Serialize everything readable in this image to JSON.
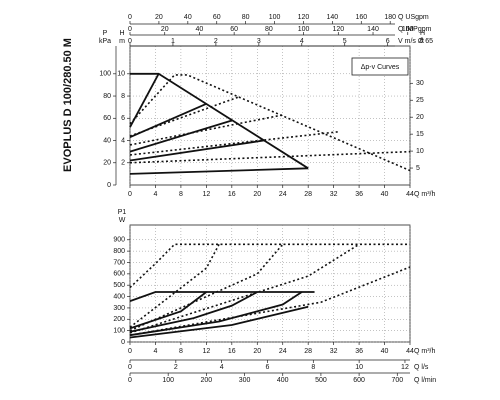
{
  "title": "EVOPLUS D 100/280.50 M",
  "chart_data": [
    {
      "type": "line",
      "legend": "Δp-v Curves",
      "grid": true,
      "xlabel": "Q m³/h",
      "xlim": [
        0,
        44
      ],
      "xticks": [
        0,
        4,
        8,
        12,
        16,
        20,
        24,
        28,
        32,
        36,
        40,
        44
      ],
      "ylabel": [
        "H",
        "m"
      ],
      "ylim": [
        0,
        12.5
      ],
      "yticks": [
        2,
        4,
        6,
        8,
        10
      ],
      "kpa": {
        "label": [
          "P",
          "kPa"
        ],
        "lim": [
          0,
          125
        ],
        "ticks": [
          0,
          20,
          40,
          60,
          80,
          100
        ]
      },
      "y2label": [
        "H",
        "ft"
      ],
      "y2lim": [
        0,
        41
      ],
      "y2ticks": [
        5,
        10,
        15,
        20,
        25,
        30
      ],
      "top_axes": [
        {
          "label": "Q USgpm",
          "lim": [
            0,
            193.7
          ],
          "ticks": [
            0,
            20,
            40,
            60,
            80,
            100,
            120,
            140,
            160,
            180
          ]
        },
        {
          "label": "Q IMPgpm",
          "lim": [
            0,
            161.3
          ],
          "ticks": [
            0,
            20,
            40,
            60,
            80,
            100,
            120,
            140,
            160
          ]
        },
        {
          "label": "V m/s Ø 65",
          "lim": [
            0,
            6.52
          ],
          "ticks": [
            0,
            1,
            2,
            3,
            4,
            5,
            6
          ]
        }
      ],
      "series": [
        {
          "style": "solid",
          "color": "#111",
          "x": [
            0,
            4.5,
            28
          ],
          "values": [
            10,
            10,
            1.5
          ]
        },
        {
          "style": "solid",
          "color": "#111",
          "x": [
            0,
            4.5
          ],
          "values": [
            5.2,
            10
          ]
        },
        {
          "style": "solid",
          "color": "#111",
          "x": [
            0,
            12
          ],
          "values": [
            4.3,
            7.3
          ]
        },
        {
          "style": "solid",
          "color": "#111",
          "x": [
            0,
            16
          ],
          "values": [
            3.0,
            5.8
          ]
        },
        {
          "style": "solid",
          "color": "#111",
          "x": [
            0,
            21
          ],
          "values": [
            2.2,
            4.0
          ]
        },
        {
          "style": "solid",
          "color": "#111",
          "x": [
            0,
            28
          ],
          "values": [
            1.0,
            1.5
          ]
        },
        {
          "style": "dotted",
          "color": "#111",
          "x": [
            0,
            7,
            9,
            44
          ],
          "values": [
            5.5,
            9.9,
            9.9,
            1.3
          ]
        },
        {
          "style": "dotted",
          "color": "#111",
          "x": [
            0,
            17
          ],
          "values": [
            4.4,
            7.9
          ]
        },
        {
          "style": "dotted",
          "color": "#111",
          "x": [
            0,
            24
          ],
          "values": [
            3.6,
            6.3
          ]
        },
        {
          "style": "dotted",
          "color": "#111",
          "x": [
            0,
            33
          ],
          "values": [
            2.7,
            4.8
          ]
        },
        {
          "style": "dotted",
          "color": "#111",
          "x": [
            0,
            44
          ],
          "values": [
            2.0,
            3.0
          ]
        }
      ]
    },
    {
      "type": "line",
      "grid": true,
      "xlabel": "Q m³/h",
      "xlim": [
        0,
        44
      ],
      "xticks": [
        0,
        4,
        8,
        12,
        16,
        20,
        24,
        28,
        32,
        36,
        40,
        44
      ],
      "ylabel": [
        "P1",
        "W"
      ],
      "ylim": [
        0,
        1030
      ],
      "yticks": [
        0,
        100,
        200,
        300,
        400,
        500,
        600,
        700,
        800,
        900
      ],
      "bottom_axes": [
        {
          "label": "Q l/s",
          "lim": [
            0,
            12.22
          ],
          "ticks": [
            0,
            2,
            4,
            6,
            8,
            10,
            12
          ]
        },
        {
          "label": "Q l/min",
          "lim": [
            0,
            733.3
          ],
          "ticks": [
            0,
            100,
            200,
            300,
            400,
            500,
            600,
            700
          ]
        }
      ],
      "series": [
        {
          "style": "solid",
          "color": "#111",
          "x": [
            0,
            4,
            29
          ],
          "values": [
            360,
            440,
            440
          ]
        },
        {
          "style": "solid",
          "color": "#111",
          "x": [
            0,
            8,
            12
          ],
          "values": [
            120,
            270,
            440
          ]
        },
        {
          "style": "solid",
          "color": "#111",
          "x": [
            0,
            10,
            16,
            20
          ],
          "values": [
            90,
            210,
            320,
            440
          ]
        },
        {
          "style": "solid",
          "color": "#111",
          "x": [
            0,
            14,
            24,
            27
          ],
          "values": [
            60,
            180,
            330,
            440
          ]
        },
        {
          "style": "solid",
          "color": "#111",
          "x": [
            0,
            16,
            28
          ],
          "values": [
            40,
            150,
            310
          ]
        },
        {
          "style": "dotted",
          "color": "#111",
          "x": [
            0,
            4,
            7,
            44
          ],
          "values": [
            480,
            690,
            860,
            860
          ]
        },
        {
          "style": "dotted",
          "color": "#111",
          "x": [
            0,
            12,
            14
          ],
          "values": [
            130,
            650,
            860
          ]
        },
        {
          "style": "dotted",
          "color": "#111",
          "x": [
            0,
            20,
            24
          ],
          "values": [
            100,
            600,
            860
          ]
        },
        {
          "style": "dotted",
          "color": "#111",
          "x": [
            0,
            28,
            36
          ],
          "values": [
            80,
            580,
            860
          ]
        },
        {
          "style": "dotted",
          "color": "#111",
          "x": [
            0,
            30,
            44
          ],
          "values": [
            60,
            350,
            660
          ]
        }
      ]
    }
  ]
}
